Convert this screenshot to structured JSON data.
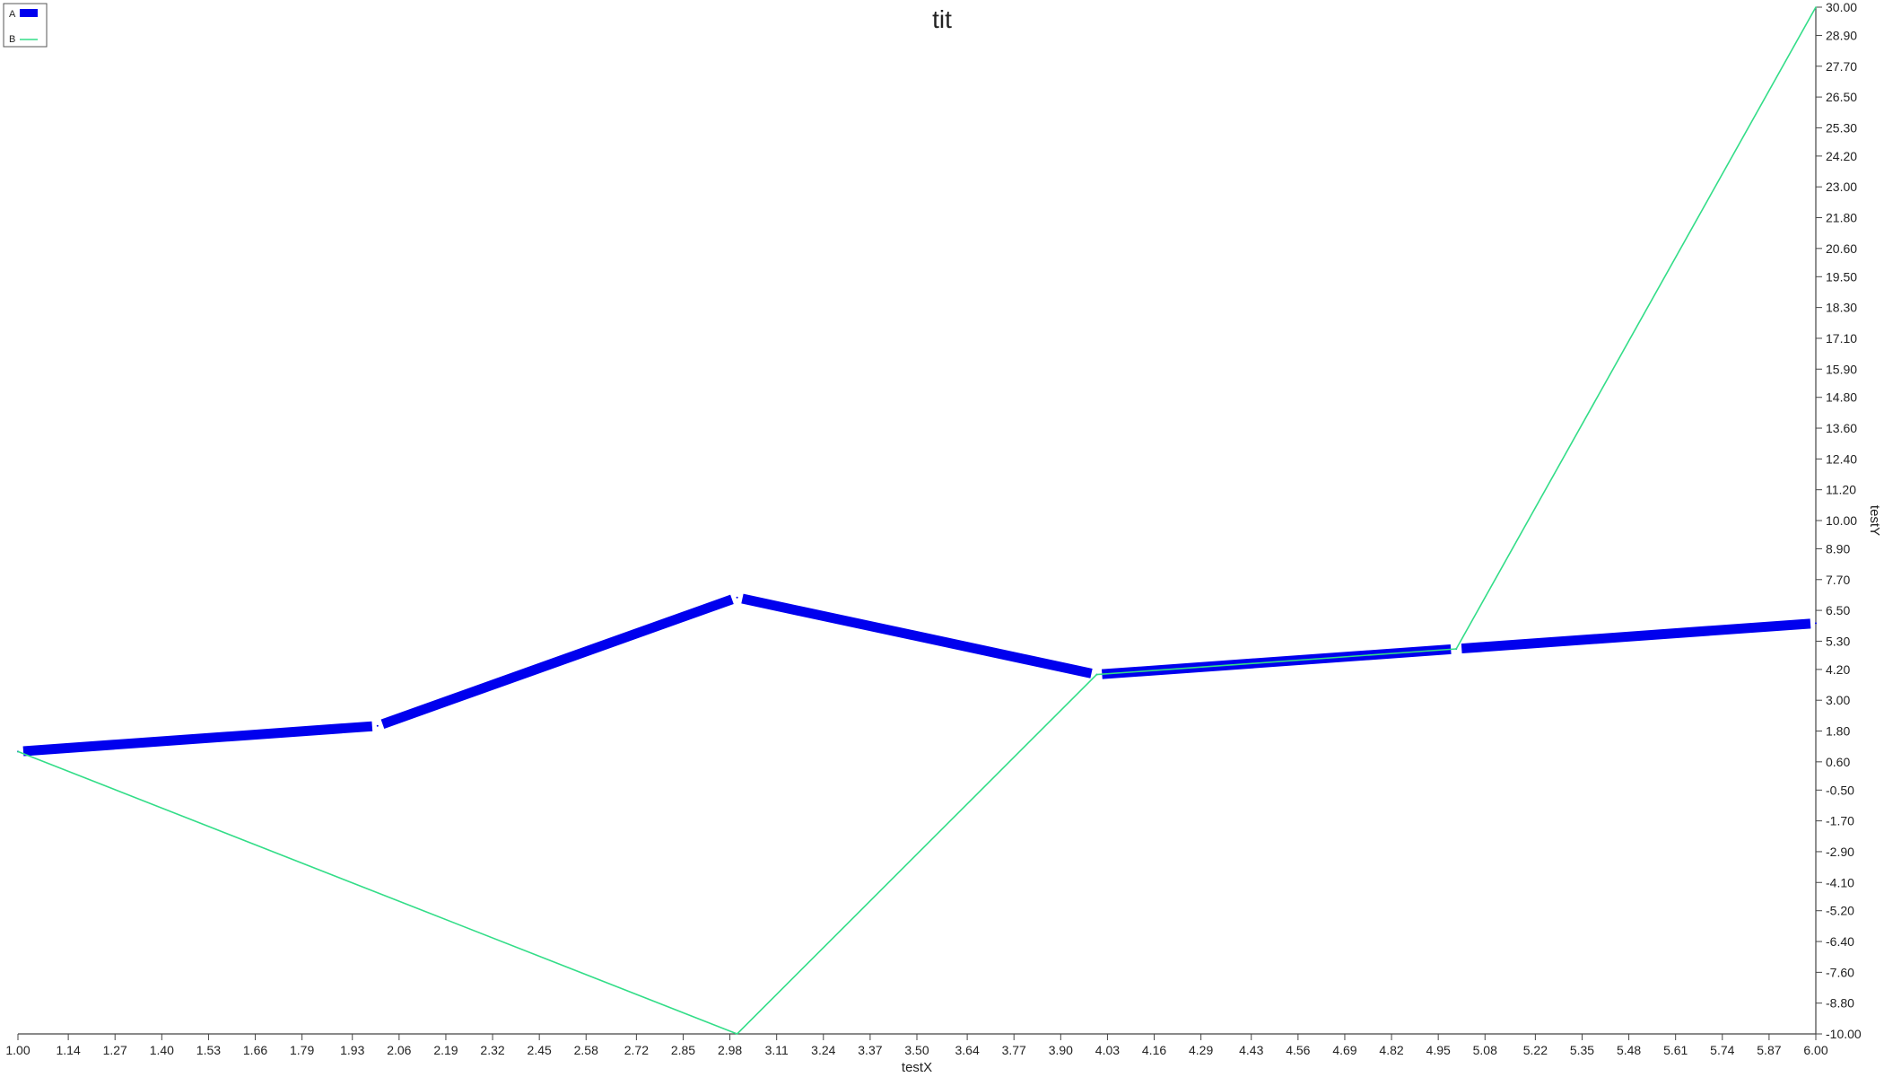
{
  "chart_data": {
    "type": "line",
    "title": "tit",
    "xlabel": "testX",
    "ylabel": "testY",
    "xlim": [
      1.0,
      6.0
    ],
    "ylim": [
      -10.0,
      30.0
    ],
    "x_ticks": [
      "1.00",
      "1.14",
      "1.27",
      "1.40",
      "1.53",
      "1.66",
      "1.79",
      "1.93",
      "2.06",
      "2.19",
      "2.32",
      "2.45",
      "2.58",
      "2.72",
      "2.85",
      "2.98",
      "3.11",
      "3.24",
      "3.37",
      "3.50",
      "3.64",
      "3.77",
      "3.90",
      "4.03",
      "4.16",
      "4.29",
      "4.43",
      "4.56",
      "4.69",
      "4.82",
      "4.95",
      "5.08",
      "5.22",
      "5.35",
      "5.48",
      "5.61",
      "5.74",
      "5.87",
      "6.00"
    ],
    "y_ticks": [
      "30.00",
      "28.90",
      "27.70",
      "26.50",
      "25.30",
      "24.20",
      "23.00",
      "21.80",
      "20.60",
      "19.50",
      "18.30",
      "17.10",
      "15.90",
      "14.80",
      "13.60",
      "12.40",
      "11.20",
      "10.00",
      "8.90",
      "7.70",
      "6.50",
      "5.30",
      "4.20",
      "3.00",
      "1.80",
      "0.60",
      "-0.50",
      "-1.70",
      "-2.90",
      "-4.10",
      "-5.20",
      "-6.40",
      "-7.60",
      "-8.80",
      "-10.00"
    ],
    "y_axis_position": "right",
    "legend": "top-left",
    "grid": false,
    "series": [
      {
        "name": "A",
        "color": "#0000ee",
        "style": "thick",
        "x": [
          1,
          2,
          3,
          4,
          5,
          6
        ],
        "y": [
          1,
          2,
          7,
          4,
          5,
          6
        ]
      },
      {
        "name": "B",
        "color": "#33dd88",
        "style": "thin",
        "x": [
          1,
          3,
          4,
          5,
          6
        ],
        "y": [
          1,
          -10,
          4,
          5,
          30
        ]
      }
    ]
  }
}
